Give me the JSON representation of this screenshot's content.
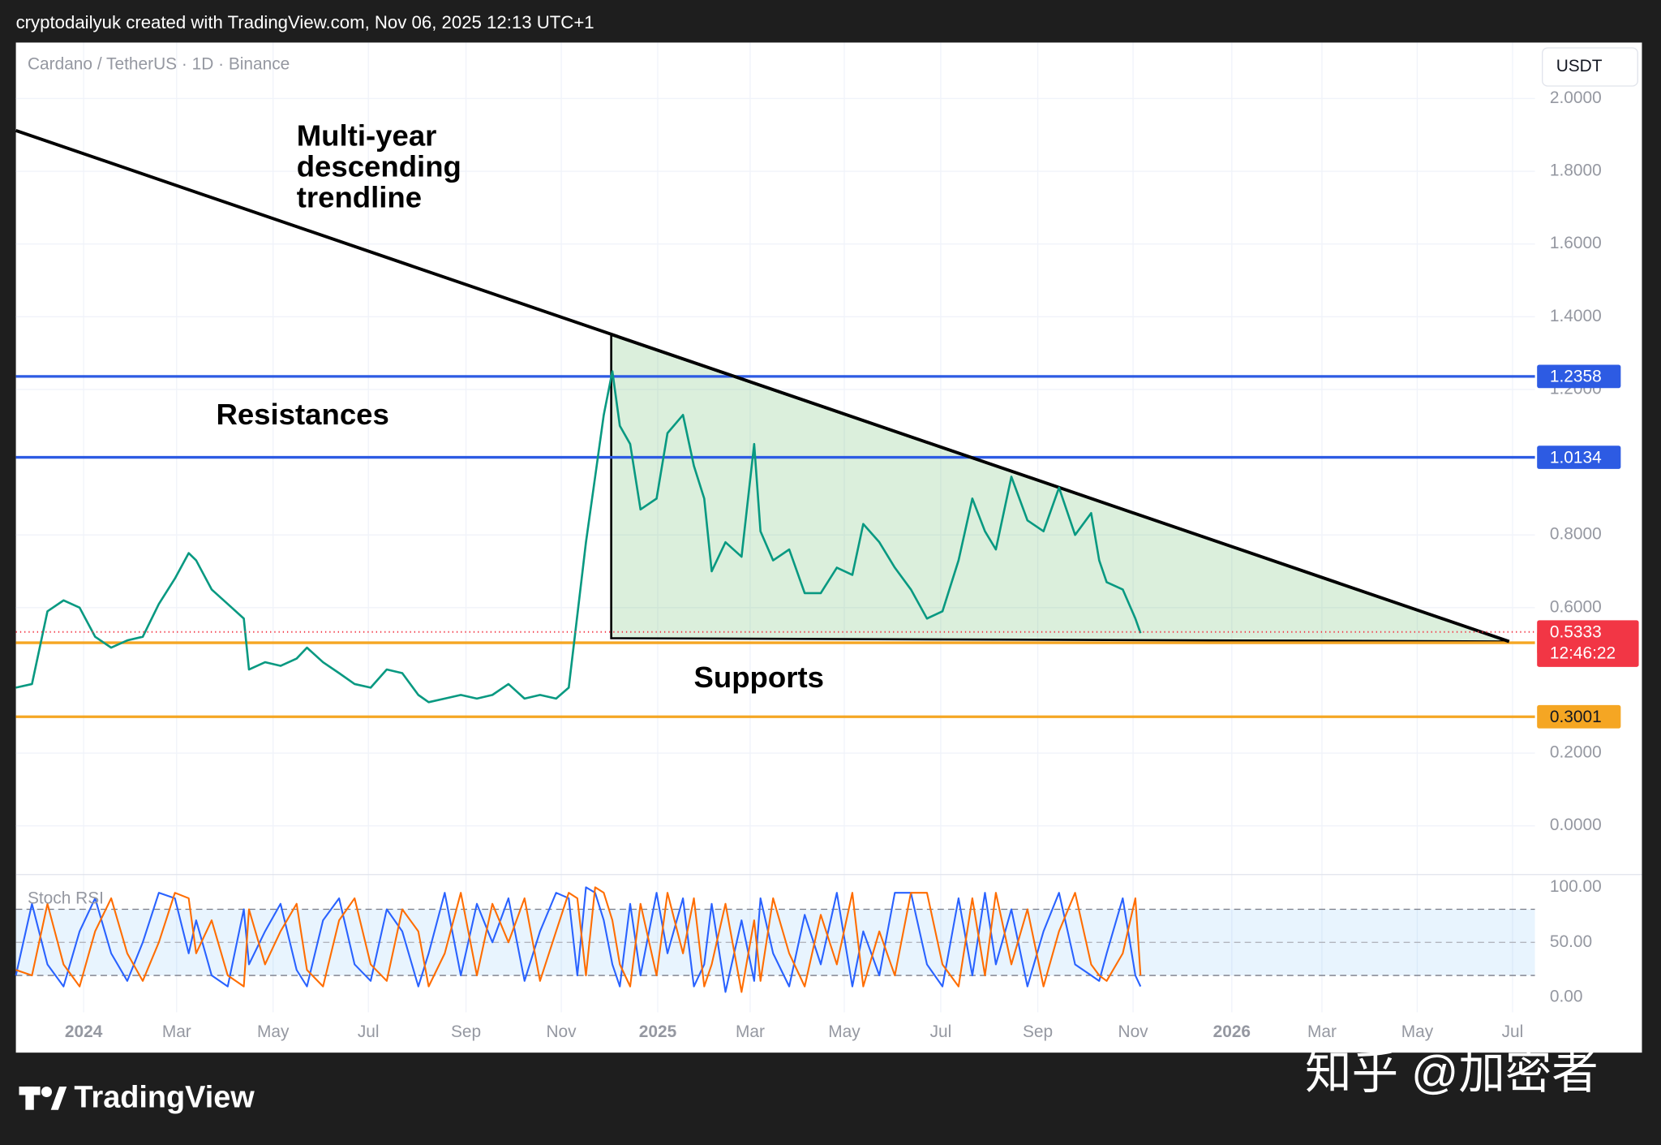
{
  "header": {
    "credit": "cryptodailyuk created with TradingView.com, Nov 06, 2025 12:13 UTC+1",
    "symbol": "Cardano / TetherUS · 1D · Binance",
    "currency": "USDT"
  },
  "footer": {
    "brand": "TradingView",
    "watermark": "知乎 @加密者"
  },
  "chart_data": [
    {
      "type": "line",
      "xlim": [
        2023.882,
        2026.528
      ],
      "ylim": [
        -0.134,
        2.154
      ],
      "xticks": [
        {
          "value": 2024.0,
          "label": "2024"
        },
        {
          "value": 2024.162,
          "label": "Mar"
        },
        {
          "value": 2024.33,
          "label": "May"
        },
        {
          "value": 2024.496,
          "label": "Jul"
        },
        {
          "value": 2024.666,
          "label": "Sep"
        },
        {
          "value": 2024.832,
          "label": "Nov"
        },
        {
          "value": 2025.0,
          "label": "2025"
        },
        {
          "value": 2025.161,
          "label": "Mar"
        },
        {
          "value": 2025.325,
          "label": "May"
        },
        {
          "value": 2025.493,
          "label": "Jul"
        },
        {
          "value": 2025.662,
          "label": "Sep"
        },
        {
          "value": 2025.828,
          "label": "Nov"
        },
        {
          "value": 2026.0,
          "label": "2026"
        },
        {
          "value": 2026.157,
          "label": "Mar"
        },
        {
          "value": 2026.323,
          "label": "May"
        },
        {
          "value": 2026.489,
          "label": "Jul"
        }
      ],
      "yticks": [
        {
          "value": 0,
          "label": "0.0000"
        },
        {
          "value": 0.2,
          "label": "0.2000"
        },
        {
          "value": 0.6,
          "label": "0.6000"
        },
        {
          "value": 0.8,
          "label": "0.8000"
        },
        {
          "value": 1.2,
          "label": "1.2000"
        },
        {
          "value": 1.4,
          "label": "1.4000"
        },
        {
          "value": 1.6,
          "label": "1.6000"
        },
        {
          "value": 1.8,
          "label": "1.8000"
        },
        {
          "value": 2.0,
          "label": "2.0000"
        }
      ],
      "grid": true,
      "x": [
        2023.882,
        2023.91,
        2023.937,
        2023.965,
        2023.993,
        2024.02,
        2024.048,
        2024.076,
        2024.103,
        2024.131,
        2024.159,
        2024.183,
        2024.196,
        2024.223,
        2024.251,
        2024.279,
        2024.288,
        2024.316,
        2024.343,
        2024.371,
        2024.389,
        2024.417,
        2024.445,
        2024.472,
        2024.5,
        2024.528,
        2024.555,
        2024.583,
        2024.601,
        2024.629,
        2024.657,
        2024.685,
        2024.712,
        2024.74,
        2024.768,
        2024.795,
        2024.823,
        2024.845,
        2024.86,
        2024.875,
        2024.891,
        2024.906,
        2024.921,
        2024.934,
        2024.952,
        2024.97,
        2024.998,
        2025.017,
        2025.044,
        2025.063,
        2025.081,
        2025.094,
        2025.118,
        2025.146,
        2025.168,
        2025.179,
        2025.201,
        2025.229,
        2025.256,
        2025.284,
        2025.312,
        2025.339,
        2025.358,
        2025.386,
        2025.413,
        2025.441,
        2025.469,
        2025.496,
        2025.524,
        2025.548,
        2025.57,
        2025.589,
        2025.616,
        2025.644,
        2025.672,
        2025.699,
        2025.727,
        2025.755,
        2025.769,
        2025.782,
        2025.81,
        2025.832,
        2025.841
      ],
      "series": [
        {
          "color": "#089981",
          "values": [
            0.38,
            0.39,
            0.59,
            0.62,
            0.6,
            0.52,
            0.49,
            0.51,
            0.52,
            0.61,
            0.68,
            0.75,
            0.73,
            0.65,
            0.61,
            0.57,
            0.43,
            0.45,
            0.44,
            0.46,
            0.49,
            0.45,
            0.42,
            0.39,
            0.38,
            0.43,
            0.42,
            0.36,
            0.34,
            0.35,
            0.36,
            0.35,
            0.36,
            0.39,
            0.35,
            0.36,
            0.35,
            0.38,
            0.58,
            0.78,
            0.96,
            1.13,
            1.25,
            1.1,
            1.05,
            0.87,
            0.9,
            1.08,
            1.13,
            0.99,
            0.9,
            0.7,
            0.78,
            0.74,
            1.05,
            0.81,
            0.73,
            0.76,
            0.64,
            0.64,
            0.71,
            0.69,
            0.83,
            0.78,
            0.71,
            0.65,
            0.57,
            0.59,
            0.73,
            0.9,
            0.81,
            0.76,
            0.96,
            0.84,
            0.81,
            0.93,
            0.8,
            0.86,
            0.73,
            0.67,
            0.65,
            0.57,
            0.53
          ]
        }
      ],
      "levels": [
        {
          "value": 1.2358,
          "color": "#2d5be3"
        },
        {
          "value": 1.0134,
          "color": "#2d5be3"
        },
        {
          "value": 0.5035,
          "color": "#f5a623"
        },
        {
          "value": 0.3001,
          "color": "#f5a623"
        }
      ],
      "last_price": {
        "value": 0.5333,
        "countdown": "12:46:22",
        "color": "#f23645"
      },
      "trendline": {
        "x": [
          2023.882,
          2026.483
        ],
        "y": [
          1.912,
          0.507
        ]
      },
      "triangle": {
        "x": [
          2024.919,
          2026.483,
          2024.919
        ],
        "y": [
          1.35,
          0.507,
          0.516
        ]
      },
      "annotations": [
        {
          "lines": [
            "Multi-year",
            "descending",
            "trendline"
          ]
        },
        {
          "lines": [
            "Resistances"
          ]
        },
        {
          "lines": [
            "Supports"
          ]
        }
      ]
    },
    {
      "type": "line",
      "title": "Stoch RSI",
      "ylim": [
        -13.5,
        111.5
      ],
      "yticks": [
        {
          "value": 0,
          "label": "0.00"
        },
        {
          "value": 50,
          "label": "50.00"
        },
        {
          "value": 100,
          "label": "100.00"
        }
      ],
      "bands": {
        "upper": 80,
        "lower": 20
      },
      "x": [
        2023.882,
        2023.91,
        2023.937,
        2023.965,
        2023.993,
        2024.02,
        2024.048,
        2024.076,
        2024.103,
        2024.131,
        2024.159,
        2024.183,
        2024.196,
        2024.223,
        2024.251,
        2024.279,
        2024.288,
        2024.316,
        2024.343,
        2024.371,
        2024.389,
        2024.417,
        2024.445,
        2024.472,
        2024.5,
        2024.528,
        2024.555,
        2024.583,
        2024.601,
        2024.629,
        2024.657,
        2024.685,
        2024.712,
        2024.74,
        2024.768,
        2024.795,
        2024.823,
        2024.845,
        2024.86,
        2024.875,
        2024.891,
        2024.906,
        2024.921,
        2024.934,
        2024.952,
        2024.97,
        2024.998,
        2025.017,
        2025.044,
        2025.063,
        2025.081,
        2025.094,
        2025.118,
        2025.146,
        2025.168,
        2025.179,
        2025.201,
        2025.229,
        2025.256,
        2025.284,
        2025.312,
        2025.339,
        2025.358,
        2025.386,
        2025.413,
        2025.441,
        2025.469,
        2025.496,
        2025.524,
        2025.548,
        2025.57,
        2025.589,
        2025.616,
        2025.644,
        2025.672,
        2025.699,
        2025.727,
        2025.755,
        2025.769,
        2025.782,
        2025.81,
        2025.832,
        2025.841
      ],
      "series": [
        {
          "color": "#2962ff",
          "values": [
            20,
            85,
            30,
            10,
            60,
            90,
            40,
            15,
            50,
            95,
            90,
            40,
            70,
            20,
            10,
            80,
            30,
            60,
            85,
            25,
            10,
            70,
            90,
            30,
            15,
            80,
            60,
            10,
            40,
            95,
            20,
            85,
            50,
            90,
            15,
            60,
            95,
            90,
            20,
            100,
            95,
            70,
            30,
            10,
            85,
            20,
            95,
            40,
            90,
            10,
            30,
            85,
            5,
            70,
            15,
            90,
            40,
            10,
            75,
            30,
            95,
            10,
            60,
            20,
            95,
            95,
            30,
            10,
            90,
            20,
            95,
            30,
            80,
            10,
            60,
            95,
            30,
            20,
            15,
            40,
            90,
            20,
            10
          ]
        },
        {
          "color": "#ff6d00",
          "values": [
            25,
            20,
            85,
            30,
            10,
            60,
            90,
            40,
            15,
            50,
            95,
            90,
            40,
            70,
            20,
            10,
            80,
            30,
            60,
            85,
            25,
            10,
            70,
            90,
            30,
            15,
            80,
            60,
            10,
            40,
            95,
            20,
            85,
            50,
            90,
            15,
            60,
            95,
            90,
            20,
            100,
            95,
            70,
            30,
            10,
            85,
            20,
            95,
            40,
            90,
            10,
            30,
            85,
            5,
            70,
            15,
            90,
            40,
            10,
            75,
            30,
            95,
            10,
            60,
            20,
            95,
            95,
            30,
            10,
            90,
            20,
            95,
            30,
            80,
            10,
            60,
            95,
            30,
            20,
            15,
            40,
            90,
            20
          ]
        }
      ]
    }
  ]
}
